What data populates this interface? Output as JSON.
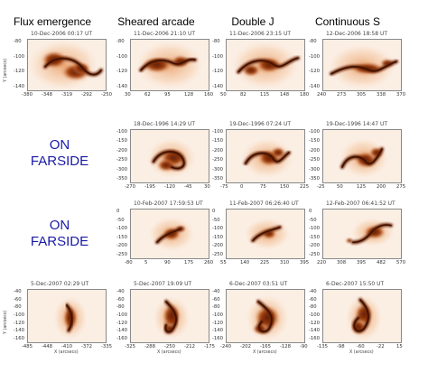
{
  "columns": [
    "Flux emergence",
    "Sheared arcade",
    "Double J",
    "Continuous S"
  ],
  "farside_label_line1": "ON",
  "farside_label_line2": "FARSIDE",
  "axis_label_x": "X (arcsecs)",
  "axis_label_y": "Y (arcsecs)",
  "rows": [
    {
      "panels": [
        {
          "time": "10-Dec-2006 00:17 UT",
          "xticks": [
            "-380",
            "-348",
            "-319",
            "-292",
            "-250"
          ],
          "yticks": [
            "-80",
            "-100",
            "-120",
            "-140"
          ]
        },
        {
          "time": "11-Dec-2006 21:10 UT",
          "xticks": [
            "30",
            "62",
            "95",
            "128",
            "160"
          ],
          "yticks": [
            "-80",
            "-100",
            "-120",
            "-140"
          ]
        },
        {
          "time": "11-Dec-2006 23:15 UT",
          "xticks": [
            "50",
            "82",
            "115",
            "148",
            "180"
          ],
          "yticks": [
            "-80",
            "-100",
            "-120",
            "-140"
          ]
        },
        {
          "time": "12-Dec-2006 18:58 UT",
          "xticks": [
            "240",
            "273",
            "305",
            "338",
            "370"
          ],
          "yticks": [
            "-80",
            "-100",
            "-120",
            "-140"
          ]
        }
      ]
    },
    {
      "panels": [
        {
          "time": "18-Dec-1996 14:29 UT",
          "xticks": [
            "-270",
            "-195",
            "-120",
            "-45",
            "30"
          ],
          "yticks": [
            "-100",
            "-150",
            "-200",
            "-250",
            "-300",
            "-350"
          ]
        },
        {
          "time": "19-Dec-1996 07:24 UT",
          "xticks": [
            "-75",
            "0",
            "75",
            "150",
            "225"
          ],
          "yticks": [
            "-100",
            "-150",
            "-200",
            "-250",
            "-300",
            "-350"
          ]
        },
        {
          "time": "19-Dec-1996 14:47 UT",
          "xticks": [
            "-25",
            "50",
            "125",
            "200",
            "275"
          ],
          "yticks": [
            "-100",
            "-150",
            "-200",
            "-250",
            "-300",
            "-350"
          ]
        }
      ]
    },
    {
      "panels": [
        {
          "time": "10-Feb-2007 17:59:53 UT",
          "xticks": [
            "-80",
            "5",
            "90",
            "175",
            "260"
          ],
          "yticks": [
            "0",
            "-50",
            "-100",
            "-150",
            "-200",
            "-250"
          ]
        },
        {
          "time": "11-Feb-2007 06:26:40 UT",
          "xticks": [
            "55",
            "140",
            "225",
            "310",
            "395"
          ],
          "yticks": [
            "0",
            "-50",
            "-100",
            "-150",
            "-200",
            "-250"
          ]
        },
        {
          "time": "12-Feb-2007 06:41:52 UT",
          "xticks": [
            "220",
            "308",
            "395",
            "482",
            "570"
          ],
          "yticks": [
            "0",
            "-50",
            "-100",
            "-150",
            "-200",
            "-250"
          ]
        }
      ]
    },
    {
      "panels": [
        {
          "time": "5-Dec-2007 02:29 UT",
          "xticks": [
            "-485",
            "-448",
            "-410",
            "-372",
            "-335"
          ],
          "yticks": [
            "-40",
            "-60",
            "-80",
            "-100",
            "-120",
            "-140",
            "-160"
          ]
        },
        {
          "time": "5-Dec-2007 19:09 UT",
          "xticks": [
            "-325",
            "-288",
            "-250",
            "-212",
            "-175"
          ],
          "yticks": [
            "-40",
            "-60",
            "-80",
            "-100",
            "-120",
            "-140",
            "-160"
          ]
        },
        {
          "time": "6-Dec-2007 03:51 UT",
          "xticks": [
            "-240",
            "-202",
            "-165",
            "-128",
            "-90"
          ],
          "yticks": [
            "-40",
            "-60",
            "-80",
            "-100",
            "-120",
            "-140",
            "-160"
          ]
        },
        {
          "time": "6-Dec-2007 15:50 UT",
          "xticks": [
            "-135",
            "-98",
            "-60",
            "-22",
            "15"
          ],
          "yticks": [
            "-40",
            "-60",
            "-80",
            "-100",
            "-120",
            "-140",
            "-160"
          ]
        }
      ]
    }
  ]
}
